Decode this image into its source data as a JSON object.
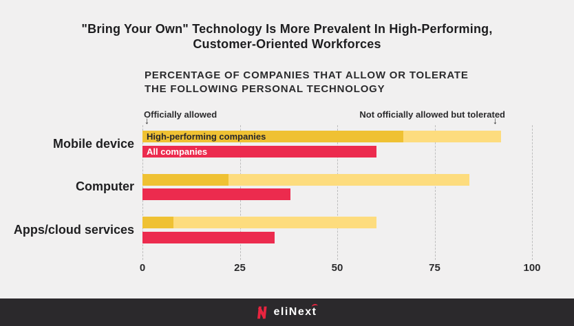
{
  "title": {
    "line1": "\"Bring Your Own\" Technology Is More Prevalent In High-Performing,",
    "line2": "Customer-Oriented Workforces"
  },
  "subtitle": {
    "line1": "PERCENTAGE OF COMPANIES THAT ALLOW OR TOLERATE",
    "line2": "THE FOLLOWING PERSONAL TECHNOLOGY"
  },
  "annotations": {
    "officially_allowed": "Officially allowed",
    "tolerated": "Not officially allowed but tolerated",
    "arrow_glyph": "↓"
  },
  "footer": {
    "logo_text": "eliNext"
  },
  "colors": {
    "background": "#F1F0F0",
    "officially_allowed": "#EFC133",
    "tolerated": "#FDDC7E",
    "all_companies": "#EC2B4E",
    "footer_bar": "#2B292C",
    "logo_red": "#E8243F",
    "text_dark": "#2A2A2C",
    "gridline": "#BDBDBD"
  },
  "chart_data": {
    "type": "bar",
    "orientation": "horizontal",
    "title": "PERCENTAGE OF COMPANIES THAT ALLOW OR TOLERATE THE FOLLOWING PERSONAL TECHNOLOGY",
    "categories": [
      "Mobile device",
      "Computer",
      "Apps/cloud services"
    ],
    "series": [
      {
        "name": "High-performing companies",
        "stack": [
          {
            "label": "Officially allowed",
            "values": [
              67,
              22,
              8
            ],
            "color": "#EFC133"
          },
          {
            "label": "Not officially allowed but tolerated",
            "values": [
              25,
              62,
              52
            ],
            "color": "#FDDC7E"
          }
        ],
        "totals": [
          92,
          84,
          60
        ]
      },
      {
        "name": "All companies",
        "values": [
          60,
          38,
          34
        ],
        "color": "#EC2B4E"
      }
    ],
    "xlabel": "",
    "ylabel": "",
    "xlim": [
      0,
      100
    ],
    "xticks": [
      0,
      25,
      50,
      75,
      100
    ],
    "grid": "vertical-dashed",
    "legend": "inline-labels-on-first-category"
  }
}
